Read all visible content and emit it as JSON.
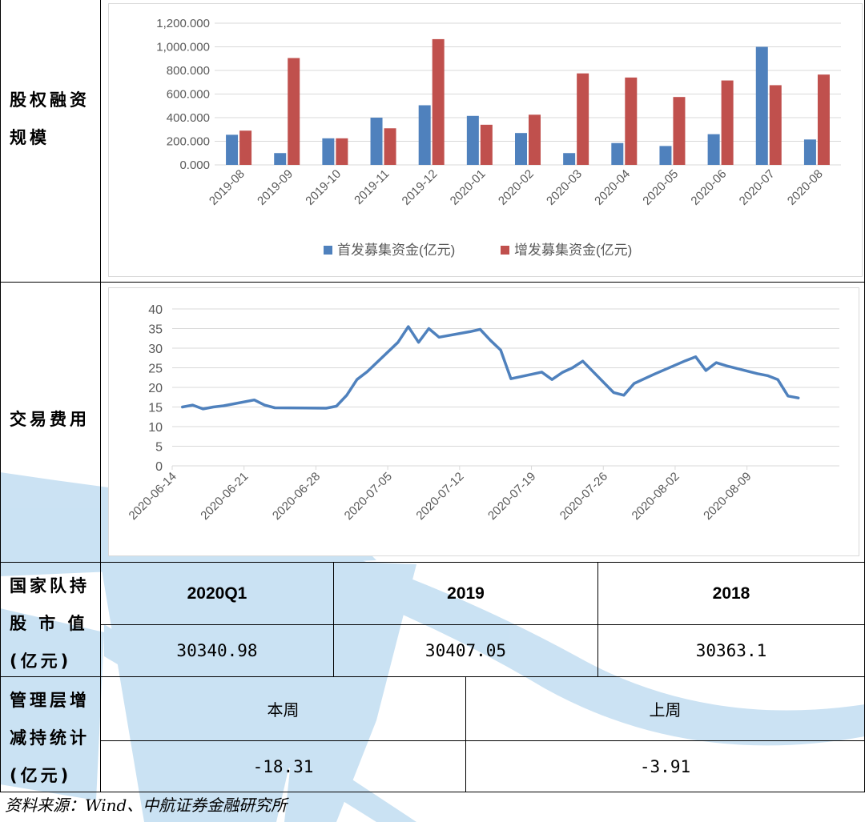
{
  "rows": {
    "equity": {
      "label": "股权融资\n规模"
    },
    "turnover": {
      "label": "交易费用"
    },
    "national_team": {
      "label": "国家队持\n股 市 值\n(亿元)",
      "headers": [
        "2020Q1",
        "2019",
        "2018"
      ],
      "values": [
        "30340.98",
        "30407.05",
        "30363.1"
      ]
    },
    "management": {
      "label": "管理层增\n减持统计\n(亿元)",
      "headers": [
        "本周",
        "上周"
      ],
      "values": [
        "-18.31",
        "-3.91"
      ]
    }
  },
  "source": "资料来源：Wind、中航证券金融研究所",
  "colors": {
    "ipo": "#4f81bd",
    "seo": "#c0504d",
    "line": "#4f81bd",
    "watermark": "#c5dff2"
  },
  "chart_data": [
    {
      "type": "bar",
      "categories": [
        "2019-08",
        "2019-09",
        "2019-10",
        "2019-11",
        "2019-12",
        "2020-01",
        "2020-02",
        "2020-03",
        "2020-04",
        "2020-05",
        "2020-06",
        "2020-07",
        "2020-08"
      ],
      "series": [
        {
          "name": "首发募集资金(亿元)",
          "values": [
            255,
            100,
            225,
            400,
            505,
            415,
            270,
            100,
            185,
            160,
            260,
            1000,
            215
          ]
        },
        {
          "name": "增发募集资金(亿元)",
          "values": [
            290,
            905,
            225,
            310,
            1065,
            340,
            425,
            775,
            740,
            575,
            715,
            675,
            765
          ]
        }
      ],
      "ylim": [
        0,
        1200
      ],
      "yticks": [
        "0.000",
        "200.000",
        "400.000",
        "600.000",
        "800.000",
        "1,000.000",
        "1,200.000"
      ],
      "grid": true,
      "legend": "bottom"
    },
    {
      "type": "line",
      "x": [
        "2020-06-15",
        "2020-06-16",
        "2020-06-17",
        "2020-06-18",
        "2020-06-19",
        "2020-06-22",
        "2020-06-23",
        "2020-06-24",
        "2020-06-29",
        "2020-06-30",
        "2020-07-01",
        "2020-07-02",
        "2020-07-03",
        "2020-07-06",
        "2020-07-07",
        "2020-07-08",
        "2020-07-09",
        "2020-07-10",
        "2020-07-13",
        "2020-07-14",
        "2020-07-15",
        "2020-07-16",
        "2020-07-17",
        "2020-07-20",
        "2020-07-21",
        "2020-07-22",
        "2020-07-23",
        "2020-07-24",
        "2020-07-27",
        "2020-07-28",
        "2020-07-29",
        "2020-07-30",
        "2020-07-31",
        "2020-08-03",
        "2020-08-04",
        "2020-08-05",
        "2020-08-06",
        "2020-08-07",
        "2020-08-10",
        "2020-08-11",
        "2020-08-12",
        "2020-08-13",
        "2020-08-14"
      ],
      "series": [
        {
          "values": [
            15.0,
            15.5,
            14.5,
            15.0,
            15.3,
            16.8,
            15.5,
            14.8,
            14.7,
            15.2,
            18.0,
            22.0,
            24.0,
            31.5,
            35.5,
            31.5,
            35.0,
            32.8,
            34.2,
            34.8,
            32.0,
            29.5,
            22.2,
            23.9,
            22.0,
            23.8,
            25.0,
            26.7,
            18.7,
            18.0,
            21.0,
            22.2,
            23.4,
            26.8,
            27.8,
            24.3,
            26.3,
            25.5,
            23.5,
            23.0,
            22.0,
            17.8,
            17.3
          ]
        }
      ],
      "ylim": [
        0,
        40
      ],
      "yticks": [
        0,
        5,
        10,
        15,
        20,
        25,
        30,
        35,
        40
      ],
      "xticks": [
        "2020-06-14",
        "2020-06-21",
        "2020-06-28",
        "2020-07-05",
        "2020-07-12",
        "2020-07-19",
        "2020-07-26",
        "2020-08-02",
        "2020-08-09"
      ],
      "grid": true
    }
  ]
}
